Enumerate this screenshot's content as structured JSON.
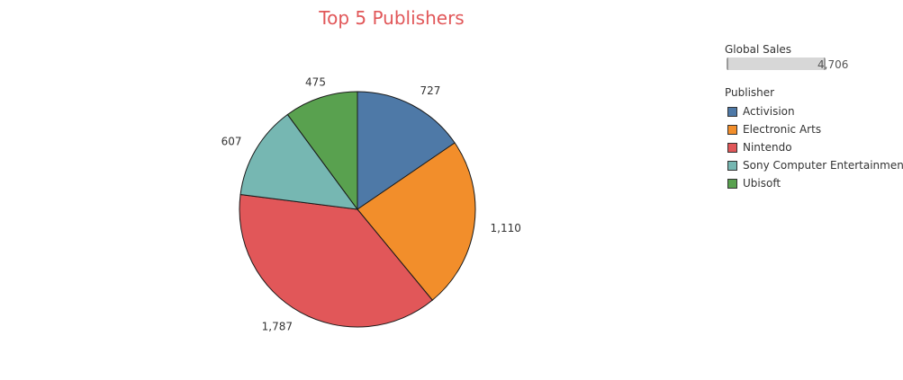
{
  "chart_data": {
    "type": "pie",
    "title": "Top 5 Publishers",
    "categories": [
      "Activision",
      "Electronic Arts",
      "Nintendo",
      "Sony Computer Entertainment",
      "Ubisoft"
    ],
    "values": [
      727,
      1110,
      1787,
      607,
      475
    ],
    "value_labels": [
      "727",
      "1,110",
      "1,787",
      "607",
      "475"
    ],
    "colors": [
      "#4e79a7",
      "#f28e2b",
      "#e15759",
      "#76b7b2",
      "#59a14f"
    ]
  },
  "legend": {
    "size_title": "Global Sales",
    "size_value": "4,706",
    "color_title": "Publisher",
    "items": [
      {
        "label": "Activision",
        "color": "#4e79a7"
      },
      {
        "label": "Electronic Arts",
        "color": "#f28e2b"
      },
      {
        "label": "Nintendo",
        "color": "#e15759"
      },
      {
        "label": "Sony Computer Entertainment",
        "color": "#76b7b2"
      },
      {
        "label": "Ubisoft",
        "color": "#59a14f"
      }
    ]
  }
}
